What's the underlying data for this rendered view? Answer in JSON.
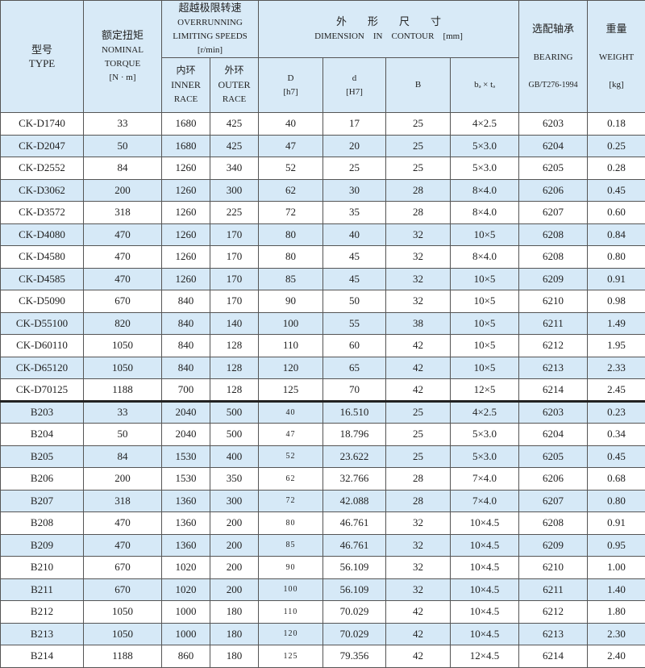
{
  "header": {
    "type_cn": "型号",
    "type_en": "TYPE",
    "torque_cn": "额定扭矩",
    "torque_en1": "NOMINAL",
    "torque_en2": "TORQUE",
    "torque_unit": "[N · m]",
    "speed_cn": "超越极限转速",
    "speed_en1": "OVERRUNNING",
    "speed_en2": "LIMITING SPEEDS",
    "speed_unit": "[r/min]",
    "inner_cn": "内环",
    "inner_en1": "INNER",
    "inner_en2": "RACE",
    "outer_cn": "外环",
    "outer_en1": "OUTER",
    "outer_en2": "RACE",
    "dim_cn": "外　　形　　尺　　寸",
    "dim_en": "DIMENSION　IN　CONTOUR　[mm]",
    "D": "D",
    "D_tol": "[h7]",
    "d": "d",
    "d_tol": "[H7]",
    "B": "B",
    "bt": "bₔ × tₔ",
    "bearing_cn": "选配轴承",
    "bearing_en": "BEARING",
    "bearing_std": "GB/T276-1994",
    "weight_cn": "重量",
    "weight_en": "WEIGHT",
    "weight_unit": "[kg]"
  },
  "rows": [
    [
      "CK-D1740",
      "33",
      "1680",
      "425",
      "40",
      "17",
      "25",
      "4×2.5",
      "6203",
      "0.18"
    ],
    [
      "CK-D2047",
      "50",
      "1680",
      "425",
      "47",
      "20",
      "25",
      "5×3.0",
      "6204",
      "0.25"
    ],
    [
      "CK-D2552",
      "84",
      "1260",
      "340",
      "52",
      "25",
      "25",
      "5×3.0",
      "6205",
      "0.28"
    ],
    [
      "CK-D3062",
      "200",
      "1260",
      "300",
      "62",
      "30",
      "28",
      "8×4.0",
      "6206",
      "0.45"
    ],
    [
      "CK-D3572",
      "318",
      "1260",
      "225",
      "72",
      "35",
      "28",
      "8×4.0",
      "6207",
      "0.60"
    ],
    [
      "CK-D4080",
      "470",
      "1260",
      "170",
      "80",
      "40",
      "32",
      "10×5",
      "6208",
      "0.84"
    ],
    [
      "CK-D4580",
      "470",
      "1260",
      "170",
      "80",
      "45",
      "32",
      "8×4.0",
      "6208",
      "0.80"
    ],
    [
      "CK-D4585",
      "470",
      "1260",
      "170",
      "85",
      "45",
      "32",
      "10×5",
      "6209",
      "0.91"
    ],
    [
      "CK-D5090",
      "670",
      "840",
      "170",
      "90",
      "50",
      "32",
      "10×5",
      "6210",
      "0.98"
    ],
    [
      "CK-D55100",
      "820",
      "840",
      "140",
      "100",
      "55",
      "38",
      "10×5",
      "6211",
      "1.49"
    ],
    [
      "CK-D60110",
      "1050",
      "840",
      "128",
      "110",
      "60",
      "42",
      "10×5",
      "6212",
      "1.95"
    ],
    [
      "CK-D65120",
      "1050",
      "840",
      "128",
      "120",
      "65",
      "42",
      "10×5",
      "6213",
      "2.33"
    ],
    [
      "CK-D70125",
      "1188",
      "700",
      "128",
      "125",
      "70",
      "42",
      "12×5",
      "6214",
      "2.45"
    ],
    [
      "B203",
      "33",
      "2040",
      "500",
      "40",
      "16.510",
      "25",
      "4×2.5",
      "6203",
      "0.23"
    ],
    [
      "B204",
      "50",
      "2040",
      "500",
      "47",
      "18.796",
      "25",
      "5×3.0",
      "6204",
      "0.34"
    ],
    [
      "B205",
      "84",
      "1530",
      "400",
      "52",
      "23.622",
      "25",
      "5×3.0",
      "6205",
      "0.45"
    ],
    [
      "B206",
      "200",
      "1530",
      "350",
      "62",
      "32.766",
      "28",
      "7×4.0",
      "6206",
      "0.68"
    ],
    [
      "B207",
      "318",
      "1360",
      "300",
      "72",
      "42.088",
      "28",
      "7×4.0",
      "6207",
      "0.80"
    ],
    [
      "B208",
      "470",
      "1360",
      "200",
      "80",
      "46.761",
      "32",
      "10×4.5",
      "6208",
      "0.91"
    ],
    [
      "B209",
      "470",
      "1360",
      "200",
      "85",
      "46.761",
      "32",
      "10×4.5",
      "6209",
      "0.95"
    ],
    [
      "B210",
      "670",
      "1020",
      "200",
      "90",
      "56.109",
      "32",
      "10×4.5",
      "6210",
      "1.00"
    ],
    [
      "B211",
      "670",
      "1020",
      "200",
      "100",
      "56.109",
      "32",
      "10×4.5",
      "6211",
      "1.40"
    ],
    [
      "B212",
      "1050",
      "1000",
      "180",
      "110",
      "70.029",
      "42",
      "10×4.5",
      "6212",
      "1.80"
    ],
    [
      "B213",
      "1050",
      "1000",
      "180",
      "120",
      "70.029",
      "42",
      "10×4.5",
      "6213",
      "2.30"
    ],
    [
      "B214",
      "1188",
      "860",
      "180",
      "125",
      "79.356",
      "42",
      "12×4.5",
      "6214",
      "2.40"
    ]
  ],
  "colors": {
    "header_bg": "#d8eaf7",
    "stripe_bg": "#d6e9f7"
  }
}
